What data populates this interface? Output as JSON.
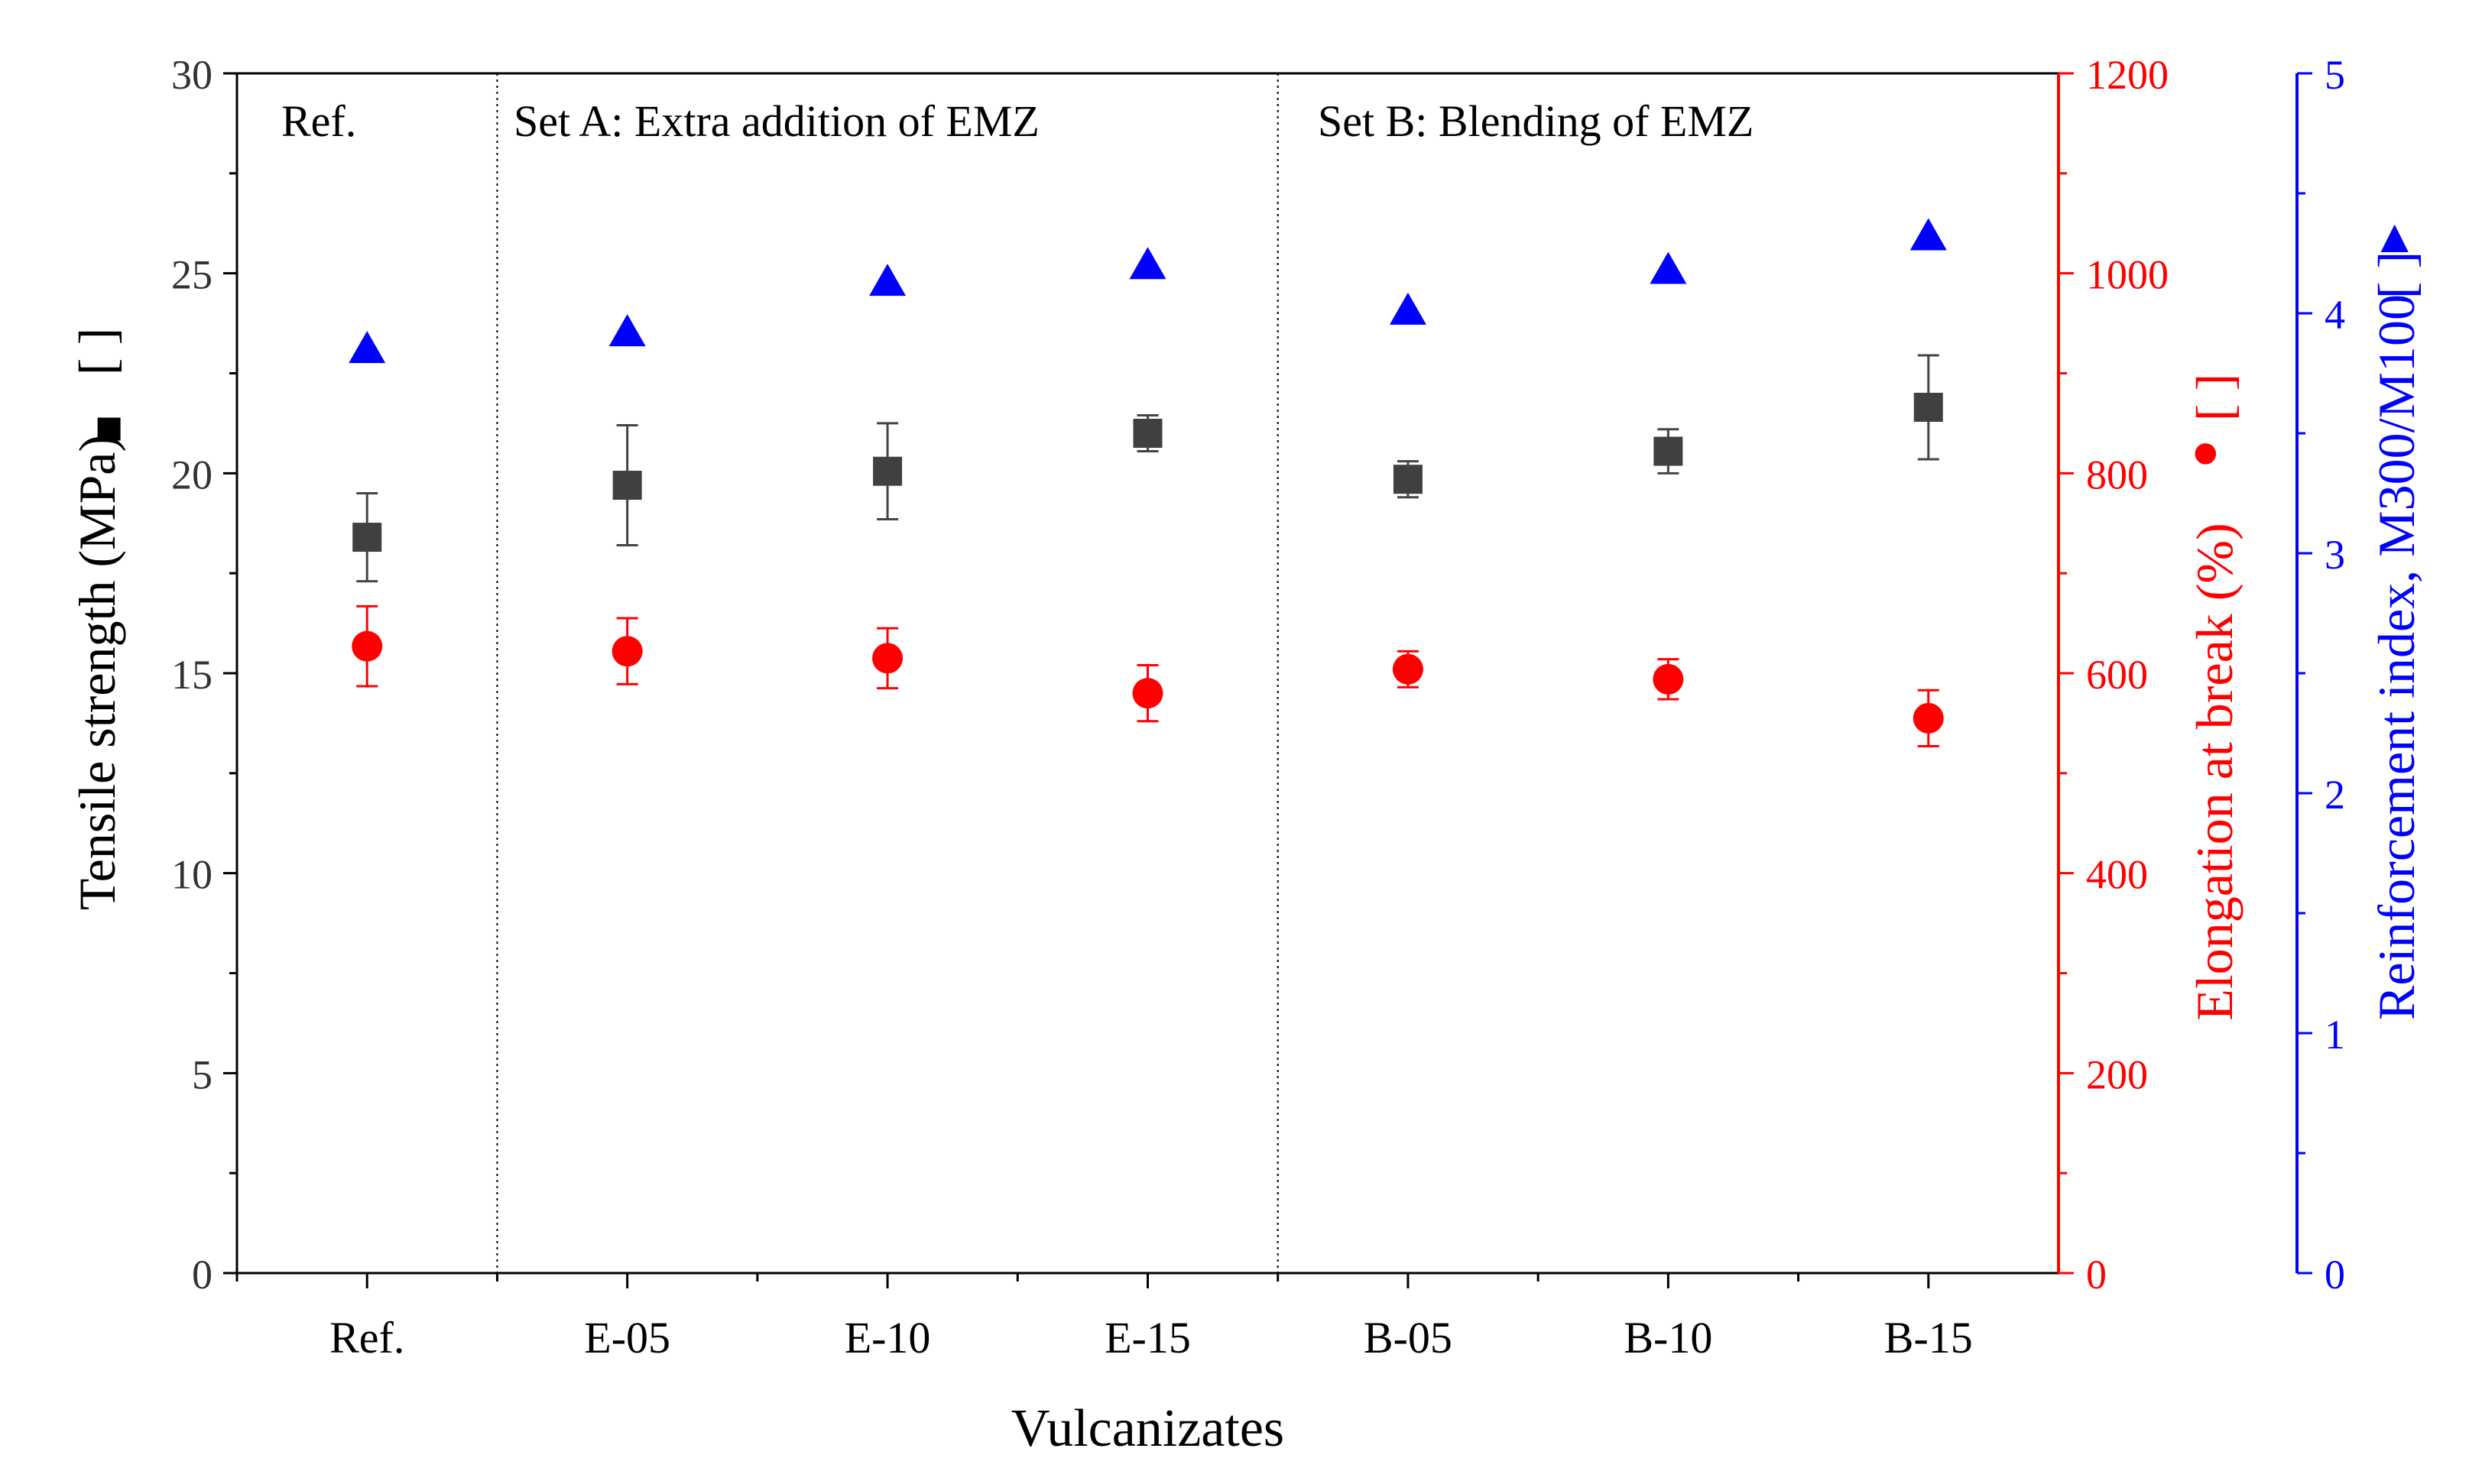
{
  "chart_data": {
    "type": "scatter",
    "xlabel": "Vulcanizates",
    "categories": [
      "Ref.",
      "E-05",
      "E-10",
      "E-15",
      "B-05",
      "B-10",
      "B-15"
    ],
    "sections": [
      {
        "label": "Ref.",
        "from": 0,
        "to": 0
      },
      {
        "label": "Set A: Extra addition of EMZ",
        "from": 1,
        "to": 3
      },
      {
        "label": "Set B: Blending of EMZ",
        "from": 4,
        "to": 6
      }
    ],
    "axes": {
      "left": {
        "label": "Tensile strength (MPa)",
        "range": [
          0,
          30
        ],
        "ticks": [
          0,
          5,
          10,
          15,
          20,
          25,
          30
        ],
        "color": "#000000"
      },
      "right1": {
        "label": "Elongation at break (%)",
        "range": [
          0,
          1200
        ],
        "ticks": [
          0,
          200,
          400,
          600,
          800,
          1000,
          1200
        ],
        "color": "#ff0000"
      },
      "right2": {
        "label": "Reinforcement index, M300/M100",
        "range": [
          0,
          5
        ],
        "ticks": [
          0,
          1,
          2,
          3,
          4,
          5
        ],
        "color": "#0000ff"
      }
    },
    "series": [
      {
        "name": "Tensile strength",
        "axis": "left",
        "marker": "square",
        "color": "#404040",
        "values": [
          18.4,
          19.7,
          20.05,
          21.0,
          19.85,
          20.55,
          21.65
        ],
        "errors": [
          1.1,
          1.5,
          1.2,
          0.45,
          0.45,
          0.55,
          1.3
        ],
        "legend_symbol": "■"
      },
      {
        "name": "Elongation at break",
        "axis": "right1",
        "marker": "circle",
        "color": "#ff0000",
        "values": [
          627,
          622,
          615,
          580,
          604,
          594,
          555
        ],
        "errors": [
          40,
          33,
          30,
          28,
          18,
          20,
          28
        ],
        "legend_symbol": "●"
      },
      {
        "name": "Reinforcement index",
        "axis": "right2",
        "marker": "triangle",
        "color": "#0000ff",
        "values": [
          3.85,
          3.92,
          4.13,
          4.2,
          4.01,
          4.18,
          4.32
        ],
        "legend_symbol": "▲"
      }
    ]
  }
}
